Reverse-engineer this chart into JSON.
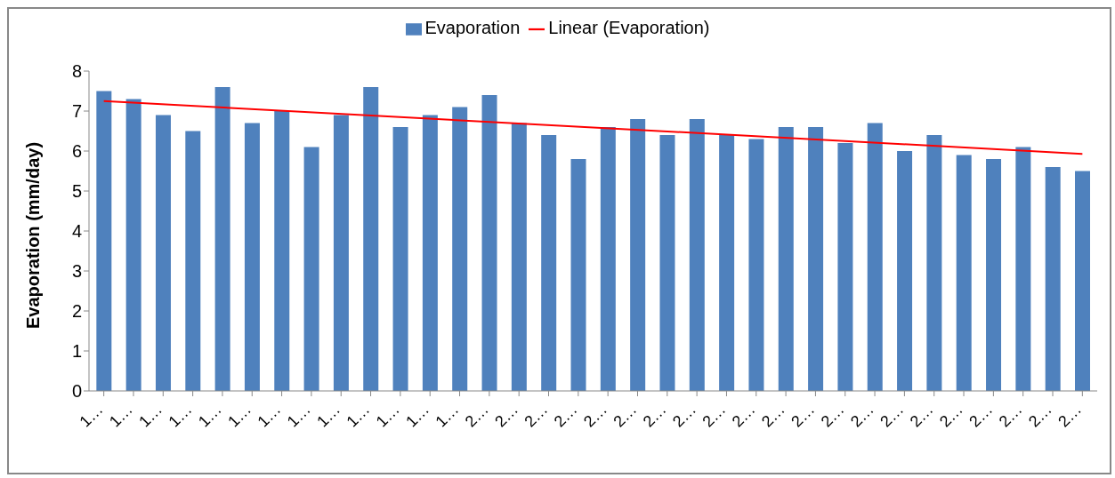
{
  "chart_data": {
    "type": "bar",
    "ylabel": "Evaporation (mm/day)",
    "categories": [
      "1…",
      "1…",
      "1…",
      "1…",
      "1…",
      "1…",
      "1…",
      "1…",
      "1…",
      "1…",
      "1…",
      "1…",
      "1…",
      "2…",
      "2…",
      "2…",
      "2…",
      "2…",
      "2…",
      "2…",
      "2…",
      "2…",
      "2…",
      "2…",
      "2…",
      "2…",
      "2…",
      "2…",
      "2…",
      "2…",
      "2…",
      "2…",
      "2…",
      "2…"
    ],
    "series": [
      {
        "name": "Evaporation",
        "color": "#4f81bd",
        "values": [
          7.5,
          7.3,
          6.9,
          6.5,
          7.6,
          6.7,
          7.0,
          6.1,
          6.9,
          7.6,
          6.6,
          6.9,
          7.1,
          7.4,
          6.7,
          6.4,
          5.8,
          6.6,
          6.8,
          6.4,
          6.8,
          6.4,
          6.3,
          6.6,
          6.6,
          6.2,
          6.7,
          6.0,
          6.4,
          5.9,
          5.8,
          6.1,
          5.6,
          5.5
        ]
      },
      {
        "name": "Linear (Evaporation)",
        "type": "line",
        "color": "#ff0000",
        "values": [
          7.25,
          null,
          null,
          null,
          null,
          null,
          null,
          null,
          null,
          null,
          null,
          null,
          null,
          null,
          null,
          null,
          null,
          null,
          null,
          null,
          null,
          null,
          null,
          null,
          null,
          null,
          null,
          null,
          null,
          null,
          null,
          null,
          null,
          5.93
        ]
      }
    ],
    "ylim": [
      0,
      8
    ],
    "yticks": [
      0,
      1,
      2,
      3,
      4,
      5,
      6,
      7,
      8
    ],
    "grid": false,
    "legend": "top",
    "marker": "none"
  }
}
